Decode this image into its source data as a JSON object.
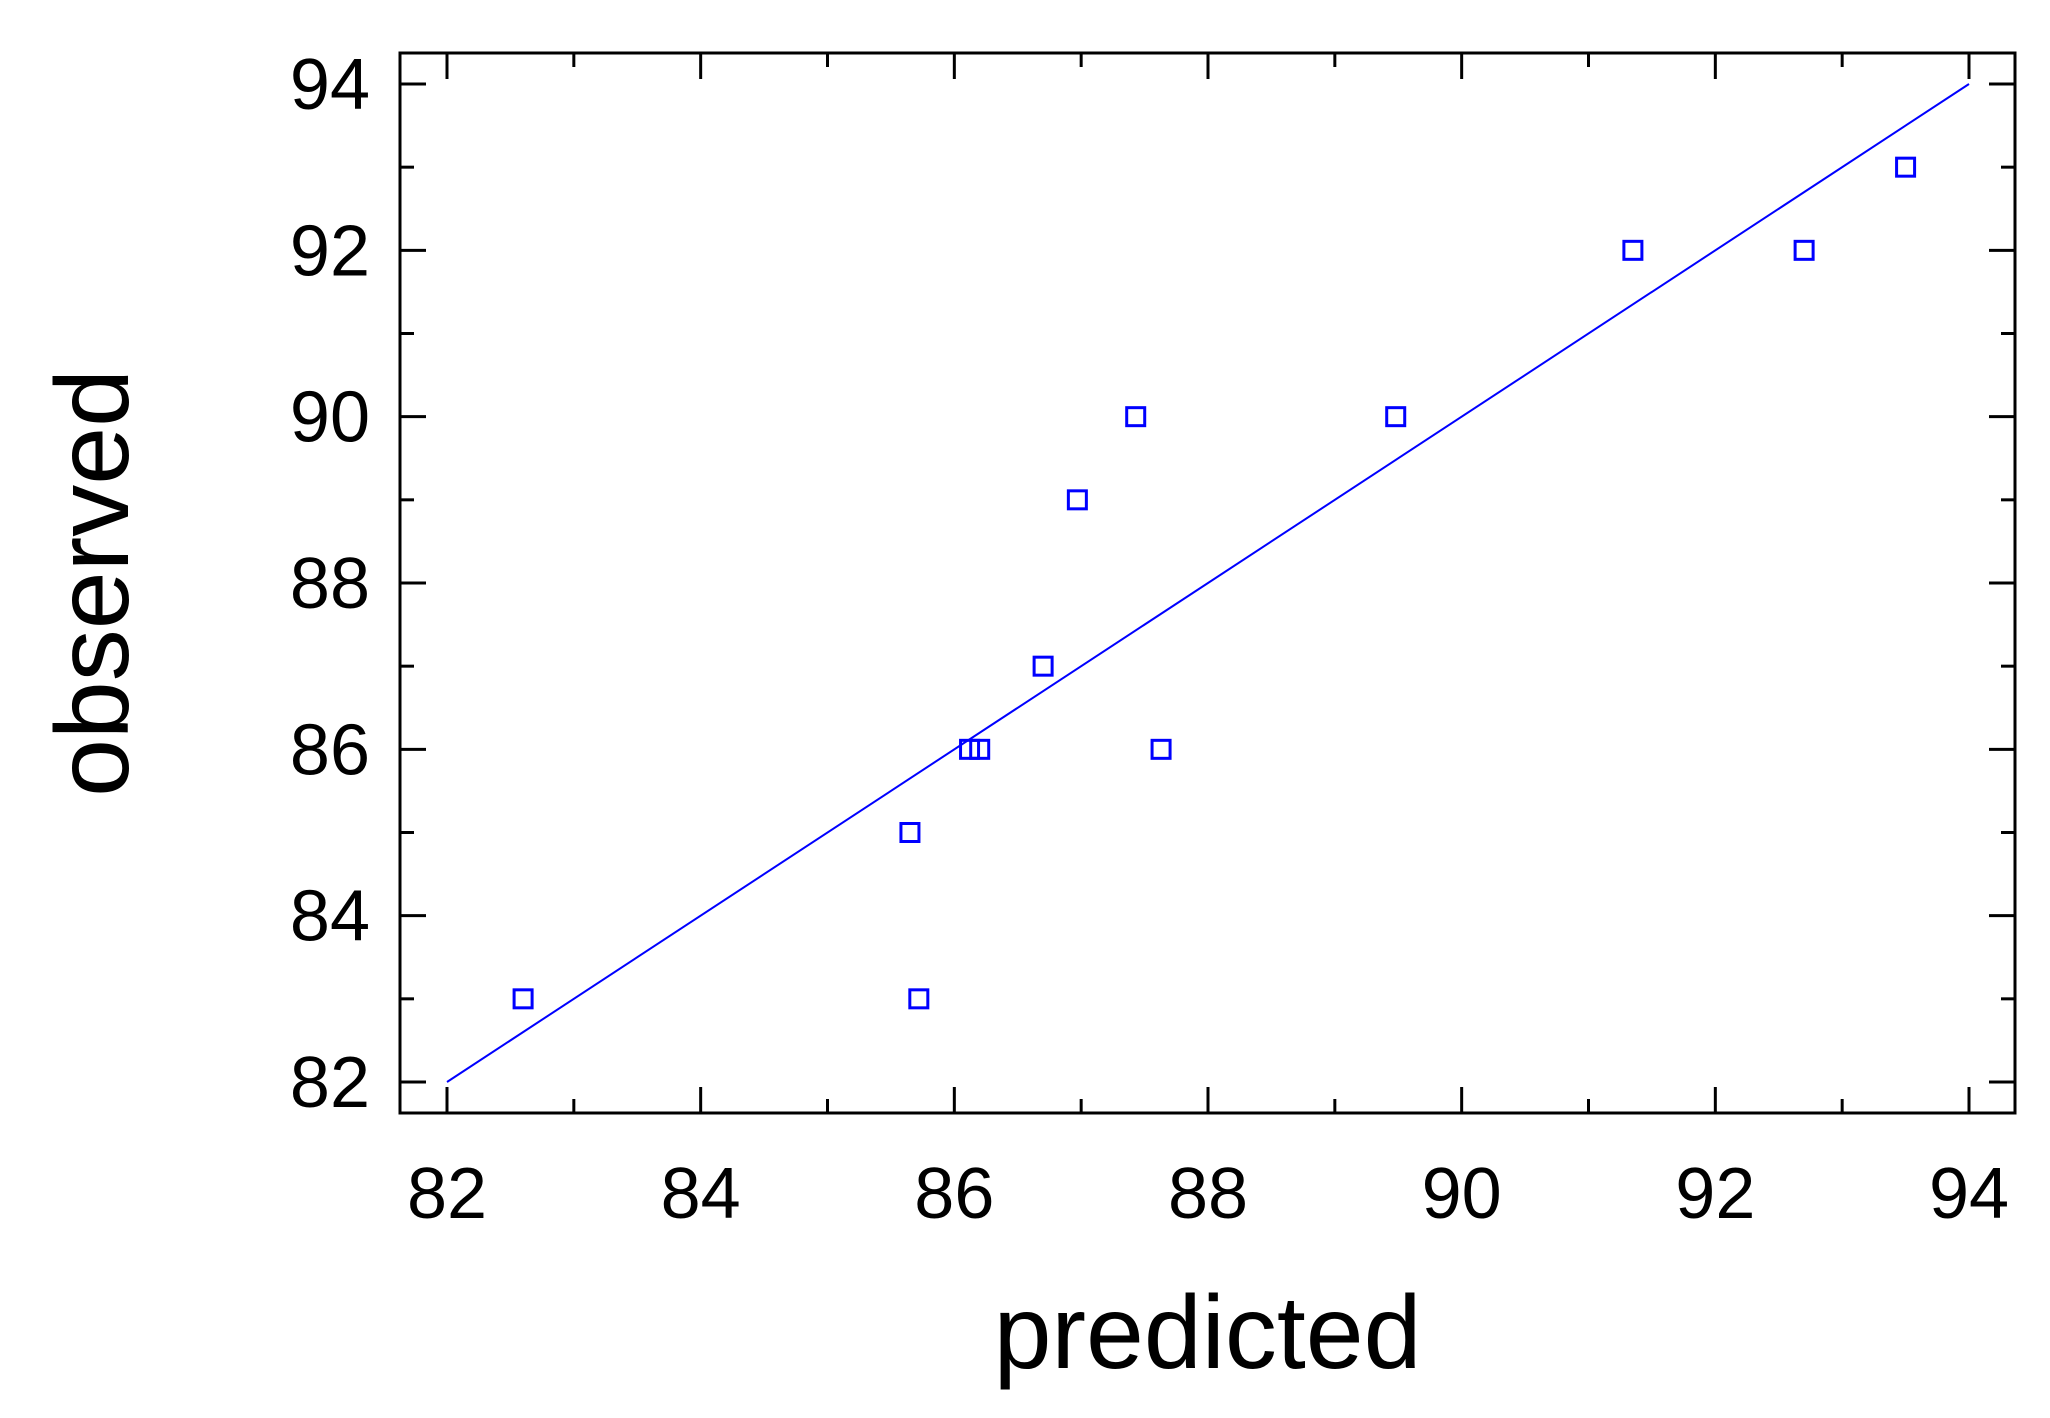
{
  "chart_data": {
    "type": "scatter",
    "title": "",
    "xlabel": "predicted",
    "ylabel": "observed",
    "xlim": [
      82,
      94
    ],
    "ylim": [
      82,
      94
    ],
    "x_ticks": [
      82,
      84,
      86,
      88,
      90,
      92,
      94
    ],
    "y_ticks": [
      82,
      84,
      86,
      88,
      90,
      92,
      94
    ],
    "grid": false,
    "legend": "none",
    "colors": {
      "points": "#0000ff",
      "line": "#0000ff",
      "axes": "#000000"
    },
    "series": [
      {
        "marker": "open-square",
        "points": [
          {
            "x": 82.6,
            "y": 83
          },
          {
            "x": 85.65,
            "y": 85
          },
          {
            "x": 85.72,
            "y": 83
          },
          {
            "x": 86.12,
            "y": 86
          },
          {
            "x": 86.2,
            "y": 86
          },
          {
            "x": 86.7,
            "y": 87
          },
          {
            "x": 86.97,
            "y": 89
          },
          {
            "x": 87.43,
            "y": 90
          },
          {
            "x": 87.63,
            "y": 86
          },
          {
            "x": 89.48,
            "y": 90
          },
          {
            "x": 91.35,
            "y": 92
          },
          {
            "x": 92.7,
            "y": 92
          },
          {
            "x": 93.5,
            "y": 93
          }
        ]
      }
    ],
    "reference_line": {
      "from": [
        82,
        82
      ],
      "to": [
        94,
        94
      ]
    }
  }
}
